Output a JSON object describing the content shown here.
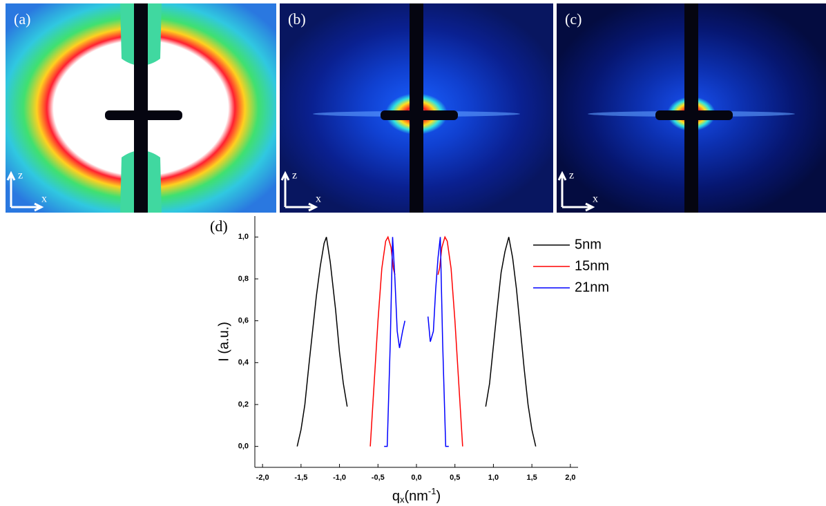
{
  "panels": [
    {
      "label": "(a)",
      "axis_z": "z",
      "axis_x": "x"
    },
    {
      "label": "(b)",
      "axis_z": "z",
      "axis_x": "x"
    },
    {
      "label": "(c)",
      "axis_z": "z",
      "axis_x": "x"
    }
  ],
  "chart_data": {
    "type": "line",
    "label": "(d)",
    "y_label": "I (a.u.)",
    "x_label_parts": [
      "q",
      "x",
      "(nm",
      "-1",
      ")"
    ],
    "xlim": [
      -2.1,
      2.1
    ],
    "ylim": [
      -0.1,
      1.1
    ],
    "xticks": [
      {
        "value": -2,
        "label": "-2,0"
      },
      {
        "value": -1.5,
        "label": "-1,5"
      },
      {
        "value": -1,
        "label": "-1,0"
      },
      {
        "value": -0.5,
        "label": "-0,5"
      },
      {
        "value": 0,
        "label": "0,0"
      },
      {
        "value": 0.5,
        "label": "0,5"
      },
      {
        "value": 1,
        "label": "1,0"
      },
      {
        "value": 1.5,
        "label": "1,5"
      },
      {
        "value": 2,
        "label": "2,0"
      }
    ],
    "yticks": [
      {
        "value": 0,
        "label": "0,0"
      },
      {
        "value": 0.2,
        "label": "0,2"
      },
      {
        "value": 0.4,
        "label": "0,4"
      },
      {
        "value": 0.6,
        "label": "0,6"
      },
      {
        "value": 0.8,
        "label": "0,8"
      },
      {
        "value": 1,
        "label": "1,0"
      }
    ],
    "legend": "upper right",
    "series": [
      {
        "name": "5nm",
        "color": "#000000",
        "x": [
          -1.55,
          -1.5,
          -1.45,
          -1.4,
          -1.35,
          -1.3,
          -1.25,
          -1.2,
          -1.17,
          -1.12,
          -1.05,
          -1.0,
          -0.95,
          -0.9,
          null,
          0.9,
          0.95,
          1.0,
          1.05,
          1.1,
          1.15,
          1.2,
          1.25,
          1.3,
          1.35,
          1.4,
          1.45,
          1.5,
          1.55
        ],
        "values": [
          0.0,
          0.08,
          0.2,
          0.38,
          0.55,
          0.72,
          0.86,
          0.97,
          1.0,
          0.88,
          0.65,
          0.45,
          0.3,
          0.19,
          null,
          0.19,
          0.3,
          0.48,
          0.66,
          0.83,
          0.93,
          1.0,
          0.9,
          0.75,
          0.56,
          0.37,
          0.2,
          0.08,
          0.0
        ]
      },
      {
        "name": "15nm",
        "color": "#ff0000",
        "x": [
          -0.6,
          -0.55,
          -0.5,
          -0.45,
          -0.4,
          -0.37,
          -0.33,
          -0.3,
          -0.28,
          null,
          0.28,
          0.3,
          0.33,
          0.37,
          0.4,
          0.45,
          0.5,
          0.55,
          0.6
        ],
        "values": [
          0.0,
          0.3,
          0.6,
          0.85,
          0.98,
          1.0,
          0.95,
          0.85,
          0.82,
          null,
          0.82,
          0.85,
          0.95,
          1.0,
          0.98,
          0.85,
          0.6,
          0.3,
          0.0
        ]
      },
      {
        "name": "21nm",
        "color": "#0000ff",
        "x": [
          -0.42,
          -0.38,
          -0.34,
          -0.31,
          -0.28,
          -0.25,
          -0.22,
          -0.18,
          -0.15,
          null,
          0.15,
          0.18,
          0.22,
          0.25,
          0.28,
          0.31,
          0.34,
          0.38,
          0.42
        ],
        "values": [
          0.0,
          0.0,
          0.5,
          1.0,
          0.8,
          0.55,
          0.47,
          0.55,
          0.6,
          null,
          0.62,
          0.5,
          0.55,
          0.75,
          0.9,
          1.0,
          0.5,
          0.0,
          0.0
        ]
      }
    ]
  }
}
